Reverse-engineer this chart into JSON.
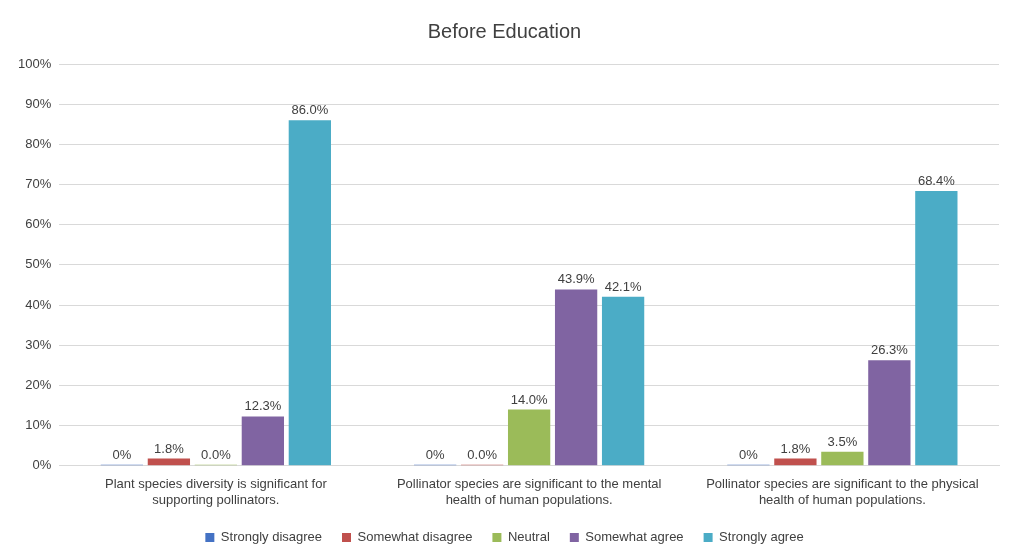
{
  "chart_data": {
    "type": "bar",
    "title": "Before Education",
    "categories": [
      "Plant species diversity is significant for supporting pollinators.",
      "Pollinator species are significant to the mental health of human populations.",
      "Pollinator species are significant to the physical health of human populations."
    ],
    "series": [
      {
        "name": "Strongly disagree",
        "color": "#4472c4",
        "values": [
          0,
          0,
          0
        ],
        "value_labels": [
          "0%",
          "0%",
          "0%"
        ]
      },
      {
        "name": "Somewhat disagree",
        "color": "#c0504d",
        "values": [
          1.8,
          0,
          1.8
        ],
        "value_labels": [
          "1.8%",
          "0.0%",
          "1.8%"
        ]
      },
      {
        "name": "Neutral",
        "color": "#9bbb59",
        "values": [
          0,
          14.0,
          3.5
        ],
        "value_labels": [
          "0.0%",
          "14.0%",
          "3.5%"
        ]
      },
      {
        "name": "Somewhat agree",
        "color": "#8064a2",
        "values": [
          12.3,
          43.9,
          26.3
        ],
        "value_labels": [
          "12.3%",
          "43.9%",
          "26.3%"
        ]
      },
      {
        "name": "Strongly agree",
        "color": "#4bacc6",
        "values": [
          86.0,
          42.1,
          68.4
        ],
        "value_labels": [
          "86.0%",
          "42.1%",
          "68.4%"
        ]
      }
    ],
    "ylim": [
      0,
      100
    ],
    "yticks": [
      {
        "value": 0,
        "label": "0%"
      },
      {
        "value": 10,
        "label": "10%"
      },
      {
        "value": 20,
        "label": "20%"
      },
      {
        "value": 30,
        "label": "30%"
      },
      {
        "value": 40,
        "label": "40%"
      },
      {
        "value": 50,
        "label": "50%"
      },
      {
        "value": 60,
        "label": "60%"
      },
      {
        "value": 70,
        "label": "70%"
      },
      {
        "value": 80,
        "label": "80%"
      },
      {
        "value": 90,
        "label": "90%"
      },
      {
        "value": 100,
        "label": "100%"
      }
    ],
    "grid": "y",
    "legend": "bottom"
  }
}
